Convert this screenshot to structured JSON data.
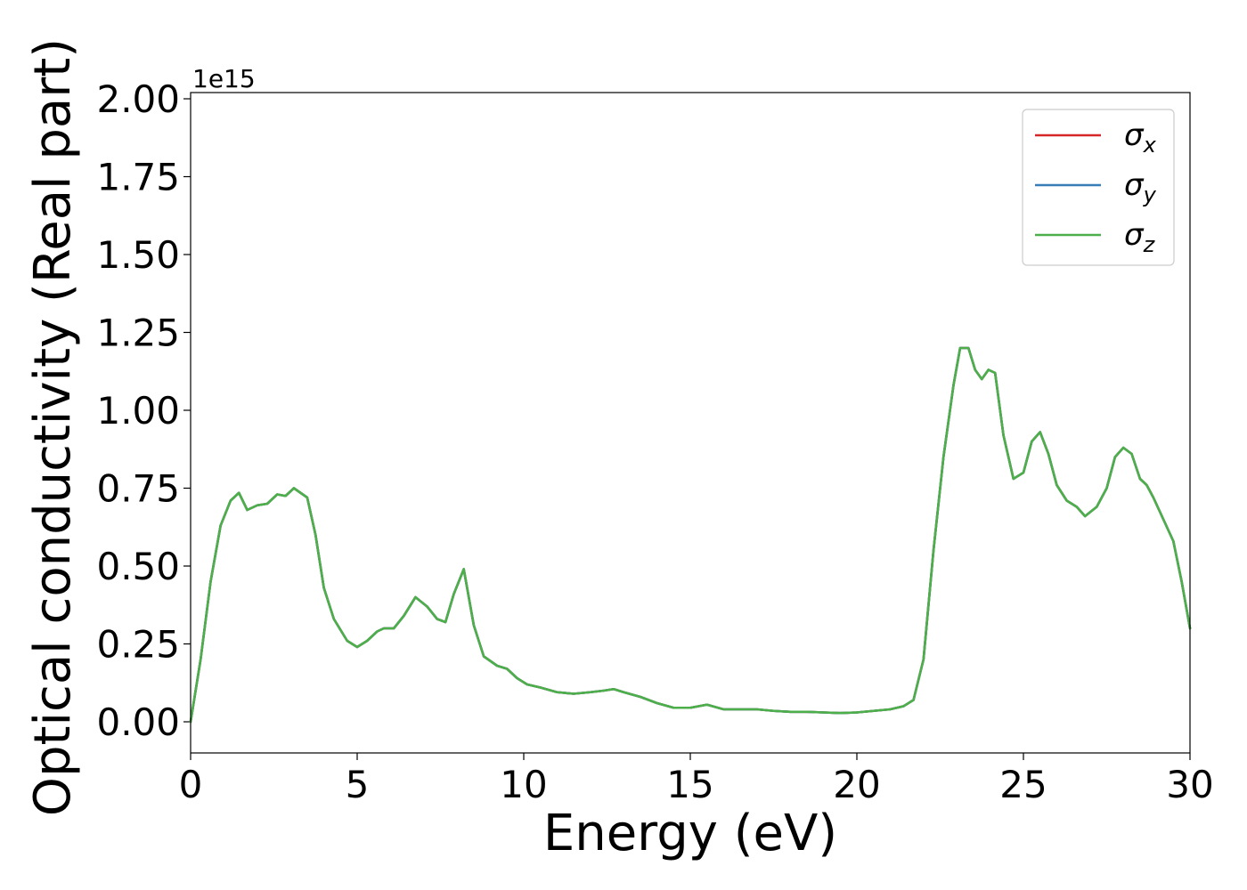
{
  "chart_data": {
    "type": "line",
    "xlabel": "Energy (eV)",
    "ylabel": "Optical conductivity (Real part)",
    "y_offset_text": "1e15",
    "xlim": [
      0,
      30
    ],
    "ylim": [
      -0.1,
      2.02
    ],
    "y_scale_factor": 1000000000000000.0,
    "grid": false,
    "legend_position": "top-right",
    "x_ticks": [
      0,
      5,
      10,
      15,
      20,
      25,
      30
    ],
    "x_tick_labels": [
      "0",
      "5",
      "10",
      "15",
      "20",
      "25",
      "30"
    ],
    "y_ticks": [
      0.0,
      0.25,
      0.5,
      0.75,
      1.0,
      1.25,
      1.5,
      1.75,
      2.0
    ],
    "y_tick_labels": [
      "0.00",
      "0.25",
      "0.50",
      "0.75",
      "1.00",
      "1.25",
      "1.50",
      "1.75",
      "2.00"
    ],
    "x": [
      0,
      0.3,
      0.6,
      0.9,
      1.2,
      1.45,
      1.7,
      2.0,
      2.3,
      2.6,
      2.85,
      3.1,
      3.3,
      3.5,
      3.75,
      4.0,
      4.3,
      4.7,
      5.0,
      5.3,
      5.6,
      5.8,
      6.1,
      6.4,
      6.75,
      7.1,
      7.4,
      7.65,
      7.9,
      8.2,
      8.5,
      8.8,
      9.2,
      9.5,
      9.8,
      10.1,
      10.5,
      11.0,
      11.5,
      12.0,
      12.4,
      12.7,
      13.0,
      13.5,
      14.0,
      14.5,
      15.0,
      15.5,
      16.0,
      16.5,
      17.0,
      17.5,
      18.0,
      18.5,
      19.0,
      19.5,
      20.0,
      20.5,
      21.0,
      21.4,
      21.7,
      22.0,
      22.3,
      22.6,
      22.9,
      23.1,
      23.35,
      23.55,
      23.75,
      23.95,
      24.15,
      24.4,
      24.7,
      25.0,
      25.25,
      25.5,
      25.75,
      26.0,
      26.3,
      26.6,
      26.85,
      27.2,
      27.5,
      27.75,
      28.0,
      28.25,
      28.5,
      28.7,
      28.9,
      29.2,
      29.5,
      29.75,
      30.0
    ],
    "series": [
      {
        "name": "σx",
        "color": "#d62728",
        "values": [
          0.0,
          0.2,
          0.45,
          0.63,
          0.71,
          0.735,
          0.68,
          0.695,
          0.7,
          0.73,
          0.725,
          0.75,
          0.735,
          0.72,
          0.6,
          0.43,
          0.33,
          0.26,
          0.24,
          0.26,
          0.29,
          0.3,
          0.3,
          0.34,
          0.4,
          0.37,
          0.33,
          0.32,
          0.41,
          0.49,
          0.31,
          0.21,
          0.18,
          0.17,
          0.14,
          0.12,
          0.11,
          0.095,
          0.09,
          0.095,
          0.1,
          0.105,
          0.095,
          0.08,
          0.06,
          0.045,
          0.045,
          0.055,
          0.04,
          0.04,
          0.04,
          0.035,
          0.032,
          0.032,
          0.03,
          0.028,
          0.03,
          0.035,
          0.04,
          0.05,
          0.07,
          0.2,
          0.55,
          0.85,
          1.08,
          1.2,
          1.2,
          1.13,
          1.1,
          1.13,
          1.12,
          0.92,
          0.78,
          0.8,
          0.9,
          0.93,
          0.86,
          0.76,
          0.71,
          0.69,
          0.66,
          0.69,
          0.75,
          0.85,
          0.88,
          0.86,
          0.78,
          0.76,
          0.72,
          0.65,
          0.58,
          0.45,
          0.3
        ]
      },
      {
        "name": "σy",
        "color": "#377eb8",
        "values": [
          0.0,
          0.2,
          0.45,
          0.63,
          0.71,
          0.735,
          0.68,
          0.695,
          0.7,
          0.73,
          0.725,
          0.75,
          0.735,
          0.72,
          0.6,
          0.43,
          0.33,
          0.26,
          0.24,
          0.26,
          0.29,
          0.3,
          0.3,
          0.34,
          0.4,
          0.37,
          0.33,
          0.32,
          0.41,
          0.49,
          0.31,
          0.21,
          0.18,
          0.17,
          0.14,
          0.12,
          0.11,
          0.095,
          0.09,
          0.095,
          0.1,
          0.105,
          0.095,
          0.08,
          0.06,
          0.045,
          0.045,
          0.055,
          0.04,
          0.04,
          0.04,
          0.035,
          0.032,
          0.032,
          0.03,
          0.028,
          0.03,
          0.035,
          0.04,
          0.05,
          0.07,
          0.2,
          0.55,
          0.85,
          1.08,
          1.2,
          1.2,
          1.13,
          1.1,
          1.13,
          1.12,
          0.92,
          0.78,
          0.8,
          0.9,
          0.93,
          0.86,
          0.76,
          0.71,
          0.69,
          0.66,
          0.69,
          0.75,
          0.85,
          0.88,
          0.86,
          0.78,
          0.76,
          0.72,
          0.65,
          0.58,
          0.45,
          0.3
        ]
      },
      {
        "name": "σz",
        "color": "#4daf4a",
        "values": [
          0.0,
          0.2,
          0.45,
          0.63,
          0.71,
          0.735,
          0.68,
          0.695,
          0.7,
          0.73,
          0.725,
          0.75,
          0.735,
          0.72,
          0.6,
          0.43,
          0.33,
          0.26,
          0.24,
          0.26,
          0.29,
          0.3,
          0.3,
          0.34,
          0.4,
          0.37,
          0.33,
          0.32,
          0.41,
          0.49,
          0.31,
          0.21,
          0.18,
          0.17,
          0.14,
          0.12,
          0.11,
          0.095,
          0.09,
          0.095,
          0.1,
          0.105,
          0.095,
          0.08,
          0.06,
          0.045,
          0.045,
          0.055,
          0.04,
          0.04,
          0.04,
          0.035,
          0.032,
          0.032,
          0.03,
          0.028,
          0.03,
          0.035,
          0.04,
          0.05,
          0.07,
          0.2,
          0.55,
          0.85,
          1.08,
          1.2,
          1.2,
          1.13,
          1.1,
          1.13,
          1.12,
          0.92,
          0.78,
          0.8,
          0.9,
          0.93,
          0.86,
          0.76,
          0.71,
          0.69,
          0.66,
          0.69,
          0.75,
          0.85,
          0.88,
          0.86,
          0.78,
          0.76,
          0.72,
          0.65,
          0.58,
          0.45,
          0.3
        ]
      }
    ],
    "legend": [
      {
        "symbol": "σ",
        "subscript": "x",
        "color": "#d62728"
      },
      {
        "symbol": "σ",
        "subscript": "y",
        "color": "#377eb8"
      },
      {
        "symbol": "σ",
        "subscript": "z",
        "color": "#4daf4a"
      }
    ]
  }
}
